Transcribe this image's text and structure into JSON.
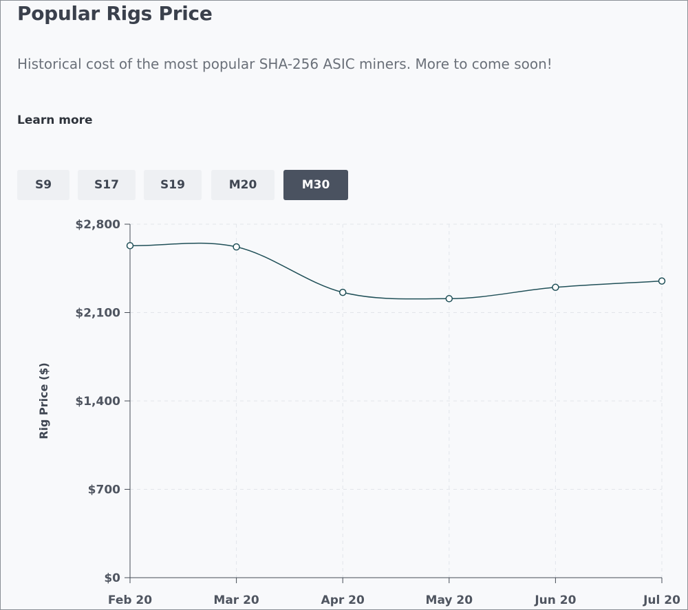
{
  "header": {
    "title": "Popular Rigs Price",
    "description": "Historical cost of the most popular SHA-256 ASIC miners. More to come soon!",
    "learn_more": "Learn more"
  },
  "tabs": [
    {
      "label": "S9",
      "active": false
    },
    {
      "label": "S17",
      "active": false
    },
    {
      "label": "S19",
      "active": false
    },
    {
      "label": "M20",
      "active": false
    },
    {
      "label": "M30",
      "active": true
    }
  ],
  "colors": {
    "line": "#1f4f57",
    "active_tab": "#4a5260",
    "grid": "#e2e5ea",
    "axis": "#444a54"
  },
  "chart_data": {
    "type": "line",
    "title": "",
    "xlabel": "",
    "ylabel": "Rig Price ($)",
    "categories": [
      "Feb 20",
      "Mar 20",
      "Apr 20",
      "May 20",
      "Jun 20",
      "Jul 20"
    ],
    "series": [
      {
        "values": [
          2630,
          2620,
          2260,
          2210,
          2300,
          2350
        ]
      }
    ],
    "ylim": [
      0,
      2800
    ],
    "yticks": [
      0,
      700,
      1400,
      2100,
      2800
    ],
    "ytick_labels": [
      "$0",
      "$700",
      "$1,400",
      "$2,100",
      "$2,800"
    ],
    "grid": true,
    "legend": "none"
  }
}
